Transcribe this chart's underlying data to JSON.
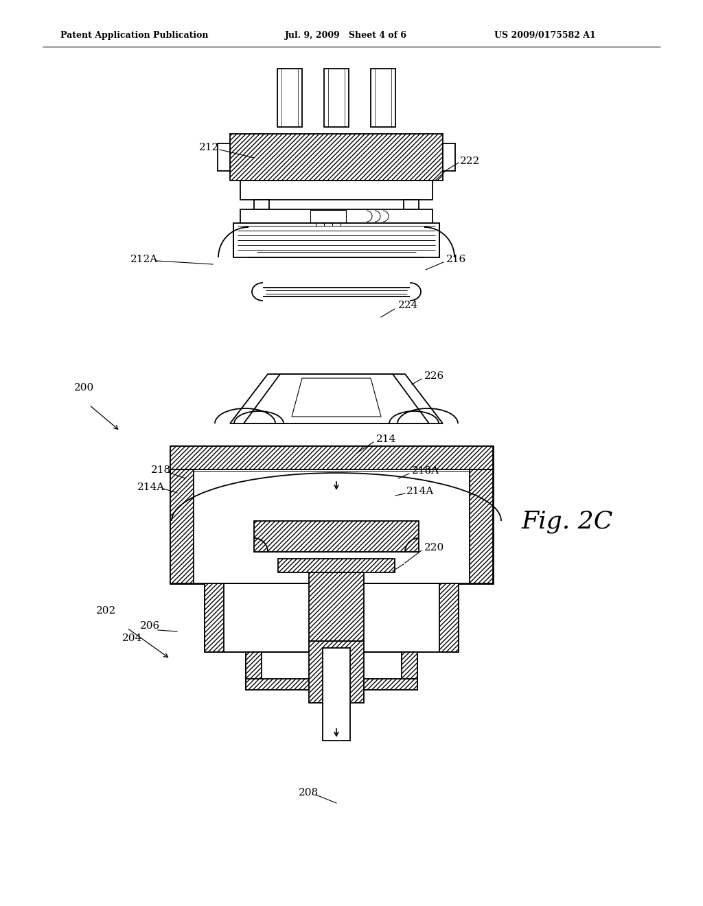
{
  "title_left": "Patent Application Publication",
  "title_mid": "Jul. 9, 2009   Sheet 4 of 6",
  "title_right": "US 2009/0175582 A1",
  "fig_label": "Fig. 2C",
  "bg_color": "#ffffff",
  "lw_main": 1.3,
  "lw_thick": 2.0,
  "label_fs": 11,
  "header_fs": 9
}
